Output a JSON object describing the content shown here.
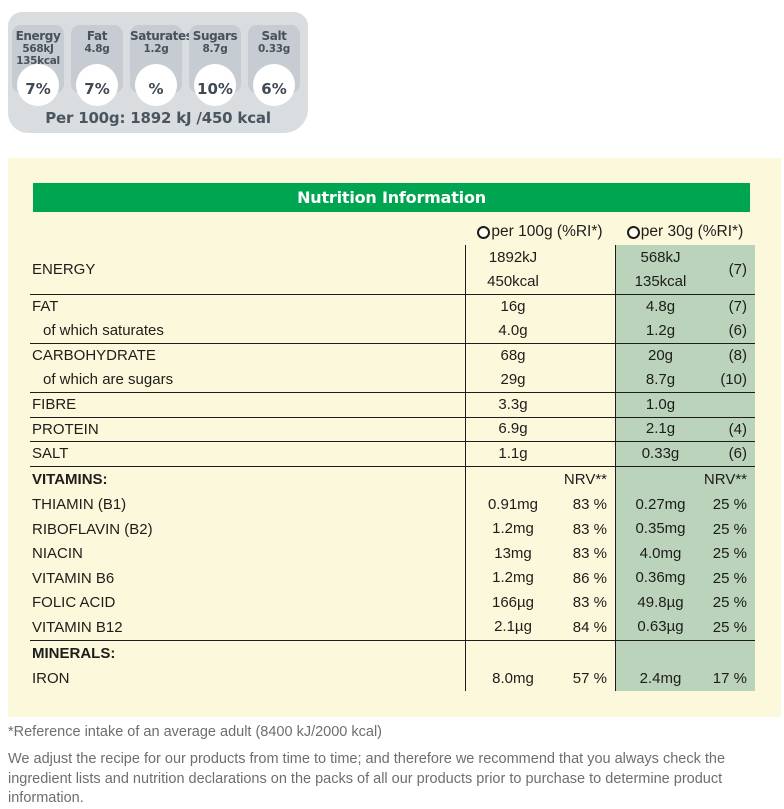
{
  "gda": {
    "badges": [
      {
        "name": "Energy",
        "values": [
          "568kJ",
          "135kcal"
        ],
        "percent": "7%"
      },
      {
        "name": "Fat",
        "values": [
          "4.8g"
        ],
        "percent": "7%"
      },
      {
        "name": "Saturates",
        "values": [
          "1.2g"
        ],
        "percent": "%"
      },
      {
        "name": "Sugars",
        "values": [
          "8.7g"
        ],
        "percent": "10%"
      },
      {
        "name": "Salt",
        "values": [
          "0.33g"
        ],
        "percent": "6%"
      }
    ],
    "per_100g_line": "Per 100g: 1892 kJ /450 kcal"
  },
  "panel": {
    "title": "Nutrition Information",
    "columns": [
      {
        "label": "per 100g (%RI*)"
      },
      {
        "label": "per 30g (%RI*)"
      }
    ],
    "rows": [
      {
        "label": "ENERGY",
        "v100": [
          "1892kJ",
          "450kcal"
        ],
        "ri100": "",
        "v30": [
          "568kJ",
          "135kcal"
        ],
        "ri30": "(7)"
      },
      {
        "label": "FAT",
        "separator": true,
        "v100": [
          "16g"
        ],
        "ri100": "",
        "v30": [
          "4.8g"
        ],
        "ri30": "(7)"
      },
      {
        "label": "of which saturates",
        "indent": true,
        "v100": [
          "4.0g"
        ],
        "ri100": "",
        "v30": [
          "1.2g"
        ],
        "ri30": "(6)"
      },
      {
        "label": "CARBOHYDRATE",
        "separator": true,
        "v100": [
          "68g"
        ],
        "ri100": "",
        "v30": [
          "20g"
        ],
        "ri30": "(8)"
      },
      {
        "label": "of which are sugars",
        "indent": true,
        "v100": [
          "29g"
        ],
        "ri100": "",
        "v30": [
          "8.7g"
        ],
        "ri30": "(10)"
      },
      {
        "label": "FIBRE",
        "separator": true,
        "v100": [
          "3.3g"
        ],
        "ri100": "",
        "v30": [
          "1.0g"
        ],
        "ri30": ""
      },
      {
        "label": "PROTEIN",
        "separator": true,
        "v100": [
          "6.9g"
        ],
        "ri100": "",
        "v30": [
          "2.1g"
        ],
        "ri30": "(4)"
      },
      {
        "label": "SALT",
        "separator": true,
        "v100": [
          "1.1g"
        ],
        "ri100": "",
        "v30": [
          "0.33g"
        ],
        "ri30": "(6)"
      },
      {
        "label": "VITAMINS:",
        "separator": true,
        "group_header": true,
        "v100": [],
        "ri100": "NRV**",
        "v30": [],
        "ri30": "NRV**"
      },
      {
        "label": "THIAMIN (B1)",
        "v100": [
          "0.91mg"
        ],
        "ri100": "83 %",
        "v30": [
          "0.27mg"
        ],
        "ri30": "25 %"
      },
      {
        "label": "RIBOFLAVIN (B2)",
        "v100": [
          "1.2mg"
        ],
        "ri100": "83 %",
        "v30": [
          "0.35mg"
        ],
        "ri30": "25 %"
      },
      {
        "label": "NIACIN",
        "v100": [
          "13mg"
        ],
        "ri100": "83 %",
        "v30": [
          "4.0mg"
        ],
        "ri30": "25 %"
      },
      {
        "label": "VITAMIN B6",
        "v100": [
          "1.2mg"
        ],
        "ri100": "86 %",
        "v30": [
          "0.36mg"
        ],
        "ri30": "25 %"
      },
      {
        "label": "FOLIC ACID",
        "v100": [
          "166µg"
        ],
        "ri100": "83 %",
        "v30": [
          "49.8µg"
        ],
        "ri30": "25 %"
      },
      {
        "label": "VITAMIN B12",
        "v100": [
          "2.1µg"
        ],
        "ri100": "84 %",
        "v30": [
          "0.63µg"
        ],
        "ri30": "25 %"
      },
      {
        "label": "MINERALS:",
        "separator": true,
        "group_header": true,
        "v100": [],
        "ri100": "",
        "v30": [],
        "ri30": ""
      },
      {
        "label": "IRON",
        "v100": [
          "8.0mg"
        ],
        "ri100": "57 %",
        "v30": [
          "2.4mg"
        ],
        "ri30": "17 %"
      }
    ]
  },
  "footnotes": {
    "reference": "*Reference intake of an average adult (8400 kJ/2000 kcal)",
    "disclaimer": "We adjust the recipe for our products from time to time; and therefore we recommend that you always check the ingredient lists and nutrition declarations on the packs of all our products prior to purchase to determine product information."
  },
  "colors": {
    "header_green": "#00A551",
    "column_green": "#BAD3BA",
    "panel_yellow": "#FCF8DB",
    "gda_container_gray": "#D9DDE0",
    "gda_badge_gray": "#C6CCD1",
    "gda_text": "#47525C",
    "table_text": "#1D1D1B",
    "footnote_gray": "#6E6E6E"
  }
}
